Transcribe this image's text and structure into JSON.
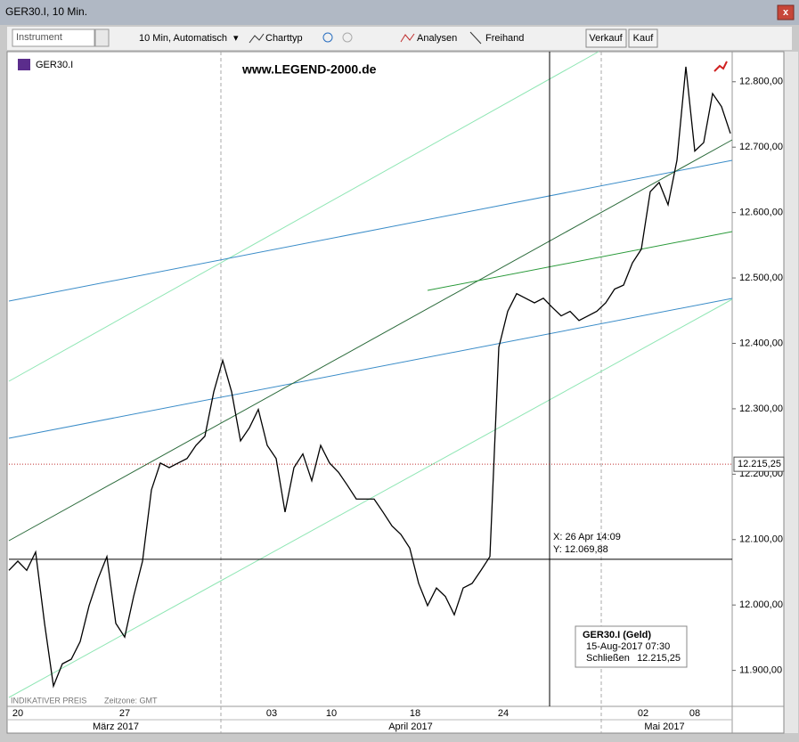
{
  "window": {
    "title": "GER30.I, 10 Min."
  },
  "toolbar": {
    "instrument": "Instrument",
    "interval": "10 Min,  Automatisch",
    "charttyp": "Charttyp",
    "analysen": "Analysen",
    "freihand": "Freihand",
    "verkauf": "Verkauf",
    "kauf": "Kauf"
  },
  "chart_data": {
    "type": "line",
    "instrument": "GER30.I",
    "watermark": "www.LEGEND-2000.de",
    "color": "#000000",
    "values": [
      12053,
      12067,
      12053,
      12081,
      11972,
      11876,
      11910,
      11917,
      11944,
      11999,
      12040,
      12074,
      11972,
      11951,
      12013,
      12067,
      12176,
      12217,
      12210,
      12217,
      12224,
      12244,
      12258,
      12326,
      12374,
      12326,
      12251,
      12271,
      12299,
      12244,
      12224,
      12142,
      12210,
      12231,
      12190,
      12244,
      12217,
      12203,
      12183,
      12162,
      12162,
      12162,
      12142,
      12121,
      12108,
      12087,
      12033,
      11999,
      12026,
      12013,
      11985,
      12026,
      12033,
      12053,
      12074,
      12394,
      12449,
      12476,
      12469,
      12462,
      12469,
      12455,
      12442,
      12449,
      12435,
      12442,
      12449,
      12462,
      12483,
      12489,
      12523,
      12544,
      12632,
      12646,
      12612,
      12680,
      12823,
      12694,
      12707,
      12782,
      12762,
      12721
    ],
    "ylim": [
      11845,
      12846
    ],
    "yticks": [
      {
        "value": 11900,
        "label": "11.900,00"
      },
      {
        "value": 12000,
        "label": "12.000,00"
      },
      {
        "value": 12100,
        "label": "12.100,00"
      },
      {
        "value": 12200,
        "label": "12.200,00"
      },
      {
        "value": 12300,
        "label": "12.300,00"
      },
      {
        "value": 12400,
        "label": "12.400,00"
      },
      {
        "value": 12500,
        "label": "12.500,00"
      },
      {
        "value": 12600,
        "label": "12.600,00"
      },
      {
        "value": 12700,
        "label": "12.700,00"
      },
      {
        "value": 12800,
        "label": "12.800,00"
      }
    ],
    "last_price": {
      "value": 12215.25,
      "label": "12.215,25"
    },
    "crosshair": {
      "x_label": "X: 26 Apr 14:09",
      "y_label": "Y: 12.069,88",
      "y": 12069.88
    },
    "xaxis": {
      "days": [
        "20",
        "27",
        "03",
        "10",
        "18",
        "24",
        "02",
        "08"
      ],
      "months": [
        "März 2017",
        "April 2017",
        "Mai 2017"
      ]
    },
    "info": {
      "title": "GER30.I (Geld)",
      "date": "15-Aug-2017 07:30",
      "close": "Schließen"
    },
    "footer": {
      "price_note": "INDIKATIVER PREIS",
      "timezone": "Zeitzone: GMT"
    }
  }
}
